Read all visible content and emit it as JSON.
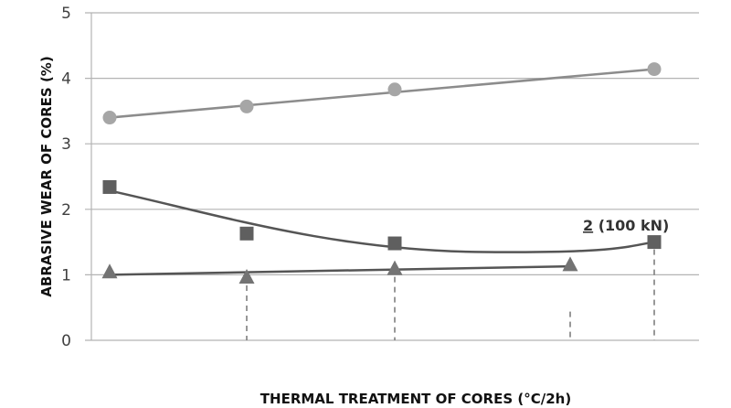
{
  "chart_data": {
    "type": "line",
    "title": "",
    "xlabel": "THERMAL TREATMENT OF CORES (°C/2h)",
    "ylabel": "ABRASIVE WEAR OF CORES  (%)",
    "ylim": [
      0,
      5
    ],
    "yticks": [
      "0",
      "1",
      "2",
      "3",
      "4",
      "5"
    ],
    "grid": true,
    "x": [
      1,
      2,
      3,
      4,
      5
    ],
    "series": [
      {
        "name": "circles",
        "marker": "circle",
        "color": "#a6a6a6",
        "x": [
          1,
          2,
          3,
          5
        ],
        "values": [
          3.4,
          3.57,
          3.83,
          4.14
        ]
      },
      {
        "name": "squares",
        "marker": "square",
        "color": "#5f5f5f",
        "x": [
          1,
          2,
          3,
          5
        ],
        "values": [
          2.34,
          1.63,
          1.48,
          1.5
        ]
      },
      {
        "name": "triangles",
        "marker": "triangle",
        "color": "#737373",
        "x": [
          1,
          2,
          3,
          4
        ],
        "values": [
          1.03,
          0.95,
          1.08,
          1.14
        ]
      }
    ],
    "annotations": [
      {
        "text_num": "2",
        "text_rest": " (100 kN)"
      }
    ]
  }
}
